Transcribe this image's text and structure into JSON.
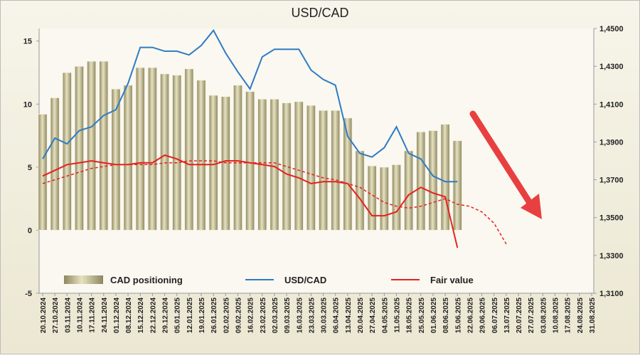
{
  "chart_data": {
    "type": "bar_line",
    "title": "USD/CAD",
    "categories": [
      "20.10.2024",
      "27.10.2024",
      "03.11.2024",
      "10.11.2024",
      "17.11.2024",
      "24.11.2024",
      "01.12.2024",
      "08.12.2024",
      "15.12.2024",
      "22.12.2024",
      "29.12.2024",
      "05.01.2025",
      "12.01.2025",
      "19.01.2025",
      "26.01.2025",
      "02.02.2025",
      "09.02.2025",
      "16.02.2025",
      "23.02.2025",
      "02.03.2025",
      "09.03.2025",
      "16.03.2025",
      "23.03.2025",
      "30.03.2025",
      "06.04.2025",
      "13.04.2025",
      "20.04.2025",
      "27.04.2025",
      "04.05.2025",
      "11.05.2025",
      "18.05.2025",
      "25.05.2025",
      "01.06.2025",
      "08.06.2025",
      "15.06.2025",
      "22.06.2025",
      "29.06.2025",
      "06.07.2025",
      "13.07.2025",
      "20.07.2025",
      "27.07.2025",
      "03.08.2025",
      "10.08.2025",
      "17.08.2025",
      "24.08.2025",
      "31.08.2025"
    ],
    "ylim": [
      -5,
      16
    ],
    "yticks": [
      -5,
      0,
      5,
      10,
      15
    ],
    "y2lim": [
      1.31,
      1.45
    ],
    "y2ticks": [
      {
        "value": 1.31,
        "label": "1,3100"
      },
      {
        "value": 1.33,
        "label": "1,3300"
      },
      {
        "value": 1.35,
        "label": "1,3500"
      },
      {
        "value": 1.37,
        "label": "1,3700"
      },
      {
        "value": 1.39,
        "label": "1,3900"
      },
      {
        "value": 1.41,
        "label": "1,4100"
      },
      {
        "value": 1.43,
        "label": "1,4300"
      },
      {
        "value": 1.45,
        "label": "1,4500"
      }
    ],
    "series": [
      {
        "name": "CAD positioning",
        "kind": "bar",
        "color": "#c9c39a",
        "values": [
          9.2,
          10.5,
          12.5,
          13.0,
          13.4,
          13.4,
          11.2,
          11.5,
          12.9,
          12.9,
          12.4,
          12.3,
          12.8,
          11.9,
          10.7,
          10.6,
          11.5,
          11.0,
          10.4,
          10.4,
          10.1,
          10.2,
          9.9,
          9.5,
          9.5,
          8.9,
          6.3,
          5.1,
          5.0,
          5.2,
          6.3,
          7.8,
          7.9,
          8.4,
          7.1,
          null,
          null,
          null,
          null,
          null,
          null,
          null,
          null,
          null,
          null,
          null
        ]
      },
      {
        "name": "USD/CAD",
        "kind": "line",
        "axis": "y2",
        "color": "#2e7bc4",
        "values": [
          1.381,
          1.392,
          1.389,
          1.396,
          1.398,
          1.404,
          1.407,
          1.421,
          1.44,
          1.44,
          1.438,
          1.438,
          1.436,
          1.441,
          1.449,
          1.437,
          1.427,
          1.418,
          1.435,
          1.439,
          1.439,
          1.439,
          1.428,
          1.423,
          1.42,
          1.393,
          1.384,
          1.382,
          1.387,
          1.398,
          1.384,
          1.381,
          1.372,
          1.369,
          1.369,
          null,
          null,
          null,
          null,
          null,
          null,
          null,
          null,
          null,
          null,
          null
        ]
      },
      {
        "name": "Fair value",
        "kind": "line",
        "axis": "y2",
        "color": "#e8201c",
        "values": [
          1.372,
          1.375,
          1.378,
          1.379,
          1.38,
          1.379,
          1.378,
          1.378,
          1.379,
          1.379,
          1.383,
          1.381,
          1.378,
          1.378,
          1.378,
          1.38,
          1.38,
          1.379,
          1.378,
          1.377,
          1.373,
          1.371,
          1.368,
          1.369,
          1.369,
          1.368,
          1.36,
          1.351,
          1.351,
          1.353,
          1.362,
          1.366,
          1.363,
          1.361,
          1.334,
          null,
          null,
          null,
          null,
          null,
          null,
          null,
          null,
          null,
          null,
          null
        ]
      },
      {
        "kind": "line",
        "axis": "y2",
        "dashed": true,
        "color": "#e8201c",
        "values": [
          1.368,
          1.37,
          1.372,
          1.374,
          1.376,
          1.377,
          1.378,
          1.378,
          1.378,
          1.378,
          1.379,
          1.379,
          1.38,
          1.38,
          1.38,
          1.379,
          1.379,
          1.379,
          1.379,
          1.379,
          1.377,
          1.375,
          1.373,
          1.371,
          1.37,
          1.368,
          1.366,
          1.362,
          1.358,
          1.356,
          1.355,
          1.356,
          1.358,
          1.36,
          1.357,
          1.356,
          1.353,
          1.347,
          1.336,
          null,
          null,
          null,
          null,
          null,
          null,
          null
        ]
      }
    ]
  }
}
